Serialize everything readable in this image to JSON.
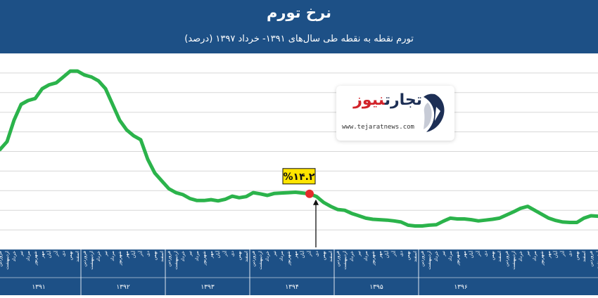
{
  "header": {
    "title": "نرخ تورم",
    "subtitle": "تورم نقطه به نقطه طی سال‌های ۱۳۹۱- خرداد ۱۳۹۷ (درصد)"
  },
  "logo": {
    "name_part1": "تجارت",
    "name_part2": "نیوز",
    "url": "www.tejaratnews.com"
  },
  "colors": {
    "header_bg": "#1d5086",
    "line": "#2bb34b",
    "marker": "#e42b2b",
    "callout_bg": "#ffe400",
    "grid": "#d7d7d7"
  },
  "chart_data": {
    "type": "line",
    "title": "نرخ تورم",
    "subtitle": "تورم نقطه به نقطه طی سال‌های ۱۳۹۱- خرداد ۱۳۹۷ (درصد)",
    "grid": true,
    "legend": "none",
    "ylim": [
      0,
      50
    ],
    "months": [
      "فروردین",
      "اردیبهشت",
      "خرداد",
      "تیر",
      "مرداد",
      "شهریور",
      "مهر",
      "آبان",
      "آذر",
      "دی",
      "بهمن",
      "اسفند"
    ],
    "years": [
      "۱۳۹۱",
      "۱۳۹۲",
      "۱۳۹۳",
      "۱۳۹۴",
      "۱۳۹۵",
      "۱۳۹۶"
    ],
    "values": [
      25.5,
      27.5,
      33.0,
      37.0,
      38.0,
      38.5,
      41.0,
      42.0,
      42.5,
      44.0,
      45.5,
      45.5,
      44.5,
      44.0,
      43.0,
      41.0,
      37.0,
      33.0,
      30.5,
      29.0,
      28.0,
      23.0,
      19.5,
      17.5,
      15.5,
      14.5,
      14.0,
      13.0,
      12.5,
      12.5,
      12.7,
      12.4,
      12.8,
      13.6,
      13.2,
      13.5,
      14.5,
      14.2,
      13.8,
      14.3,
      14.4,
      14.5,
      14.6,
      14.4,
      14.2,
      13.5,
      12.0,
      11.0,
      10.2,
      10.0,
      9.2,
      8.6,
      8.0,
      7.7,
      7.6,
      7.5,
      7.3,
      7.0,
      6.2,
      6.0,
      6.0,
      6.2,
      6.3,
      7.2,
      8.0,
      7.8,
      7.8,
      7.6,
      7.3,
      7.5,
      7.7,
      8.0,
      8.8,
      9.6,
      10.5,
      11.0,
      10.0,
      9.0,
      8.0,
      7.4,
      7.0,
      6.9,
      6.9,
      8.0,
      8.6,
      8.5
    ],
    "annotations": [
      {
        "label": "%۱۴.۲",
        "index": 44,
        "value": 14.2
      }
    ]
  }
}
